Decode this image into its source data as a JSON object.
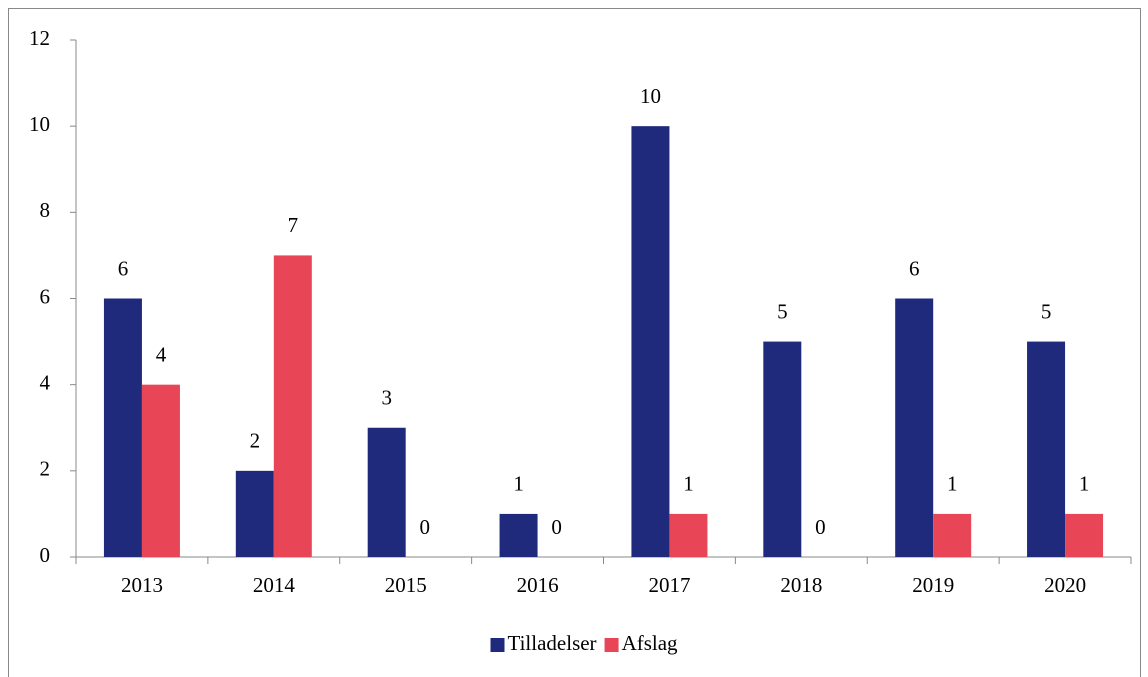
{
  "chart_data": {
    "type": "bar",
    "categories": [
      "2013",
      "2014",
      "2015",
      "2016",
      "2017",
      "2018",
      "2019",
      "2020"
    ],
    "series": [
      {
        "name": "Tilladelser",
        "color": "#1f2a7c",
        "values": [
          6,
          2,
          3,
          1,
          10,
          5,
          6,
          5
        ]
      },
      {
        "name": "Afslag",
        "color": "#e84657",
        "values": [
          4,
          7,
          0,
          0,
          1,
          0,
          1,
          1
        ]
      }
    ],
    "ylim": [
      0,
      12
    ],
    "yticks": [
      0,
      2,
      4,
      6,
      8,
      10,
      12
    ],
    "grid": false,
    "legend": "bottom"
  }
}
